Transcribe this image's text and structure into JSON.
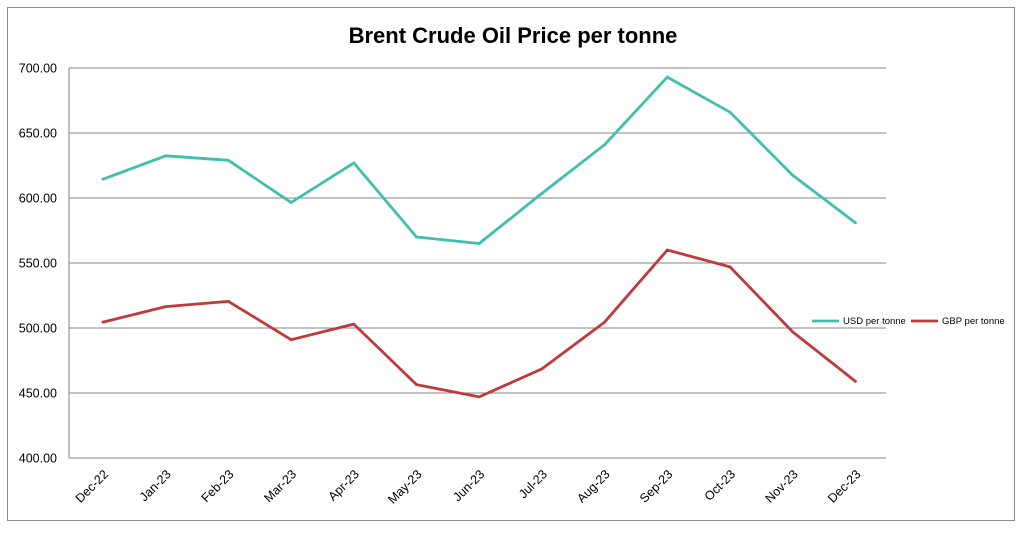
{
  "chart_data": {
    "type": "line",
    "title": "Brent Crude Oil Price per tonne",
    "xlabel": "",
    "ylabel": "",
    "ylim": [
      400,
      700
    ],
    "y_ticks": [
      "400.00",
      "450.00",
      "500.00",
      "550.00",
      "600.00",
      "650.00",
      "700.00"
    ],
    "grid": true,
    "legend_position": "right",
    "categories": [
      "Dec-22",
      "Jan-23",
      "Feb-23",
      "Mar-23",
      "Apr-23",
      "May-23",
      "Jun-23",
      "Jul-23",
      "Aug-23",
      "Sep-23",
      "Oct-23",
      "Nov-23",
      "Dec-23"
    ],
    "series": [
      {
        "name": "USD per tonne",
        "color": "#40bfae",
        "values": [
          614.5,
          632.5,
          629.0,
          596.5,
          627.0,
          570.0,
          565.0,
          603.5,
          641.0,
          693.0,
          666.0,
          617.5,
          581.0
        ]
      },
      {
        "name": "GBP per tonne",
        "color": "#c0393b",
        "values": [
          504.5,
          516.5,
          520.5,
          491.0,
          503.0,
          456.5,
          447.0,
          468.5,
          504.5,
          560.0,
          547.0,
          497.0,
          459.0
        ]
      }
    ]
  }
}
